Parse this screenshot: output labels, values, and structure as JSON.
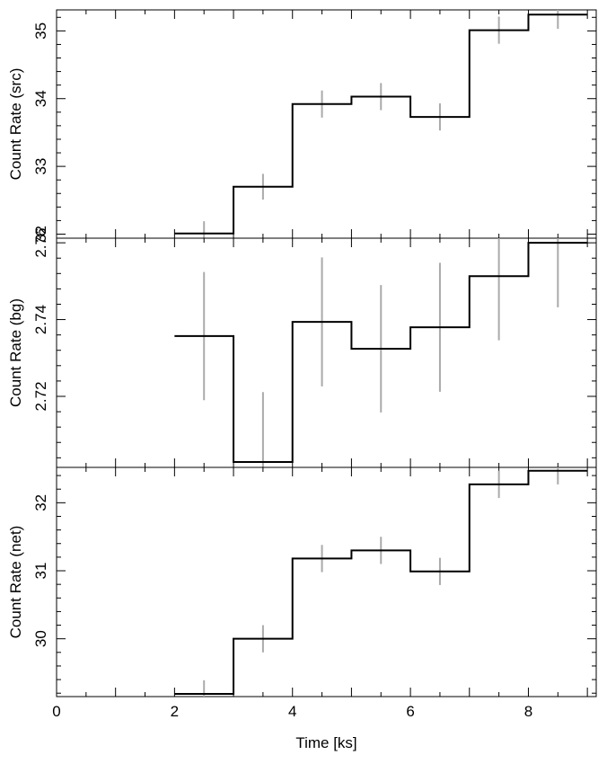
{
  "chart_data": {
    "type": "line",
    "style": "step-with-error-bars",
    "x_axis": {
      "label": "Time [ks]",
      "range": [
        0,
        9.15
      ],
      "ticks": [
        0,
        2,
        4,
        6,
        8
      ],
      "tick_labels": [
        "0",
        "2",
        "4",
        "6",
        "8"
      ]
    },
    "panels": [
      {
        "ylabel": "Count Rate (src)",
        "ylim": [
          31.94,
          35.31
        ],
        "yticks": [
          32,
          33,
          34,
          35
        ],
        "ytick_labels": [
          "32",
          "33",
          "34",
          "35"
        ],
        "bins": [
          {
            "x0": 2,
            "x1": 3,
            "xc": 2.5,
            "y": 32.01,
            "err": 0.18
          },
          {
            "x0": 3,
            "x1": 4,
            "xc": 3.5,
            "y": 32.7,
            "err": 0.19
          },
          {
            "x0": 4,
            "x1": 5,
            "xc": 4.5,
            "y": 33.92,
            "err": 0.2
          },
          {
            "x0": 5,
            "x1": 6,
            "xc": 5.5,
            "y": 34.03,
            "err": 0.2
          },
          {
            "x0": 6,
            "x1": 7,
            "xc": 6.5,
            "y": 33.73,
            "err": 0.2
          },
          {
            "x0": 7,
            "x1": 8,
            "xc": 7.5,
            "y": 35.01,
            "err": 0.2
          },
          {
            "x0": 8,
            "x1": 9,
            "xc": 8.5,
            "y": 35.24,
            "err": 0.21
          }
        ]
      },
      {
        "ylabel": "Count Rate (bg)",
        "ylim": [
          2.7015,
          2.7612
        ],
        "yticks": [
          2.72,
          2.74,
          2.76
        ],
        "ytick_labels": [
          "2.72",
          "2.74",
          "2.76"
        ],
        "bins": [
          {
            "x0": 2,
            "x1": 3,
            "xc": 2.5,
            "y": 2.7357,
            "err": 0.0167
          },
          {
            "x0": 3,
            "x1": 4,
            "xc": 3.5,
            "y": 2.7029,
            "err": 0.0182
          },
          {
            "x0": 4,
            "x1": 5,
            "xc": 4.5,
            "y": 2.7394,
            "err": 0.0168
          },
          {
            "x0": 5,
            "x1": 6,
            "xc": 5.5,
            "y": 2.7324,
            "err": 0.0166
          },
          {
            "x0": 6,
            "x1": 7,
            "xc": 6.5,
            "y": 2.738,
            "err": 0.0168
          },
          {
            "x0": 7,
            "x1": 8,
            "xc": 7.5,
            "y": 2.7513,
            "err": 0.0167
          },
          {
            "x0": 8,
            "x1": 9,
            "xc": 8.5,
            "y": 2.76,
            "err": 0.0168
          }
        ]
      },
      {
        "ylabel": "Count Rate (net)",
        "ylim": [
          29.15,
          32.52
        ],
        "yticks": [
          30,
          31,
          32
        ],
        "ytick_labels": [
          "30",
          "31",
          "32"
        ],
        "bins": [
          {
            "x0": 2,
            "x1": 3,
            "xc": 2.5,
            "y": 29.19,
            "err": 0.2
          },
          {
            "x0": 3,
            "x1": 4,
            "xc": 3.5,
            "y": 30.0,
            "err": 0.2
          },
          {
            "x0": 4,
            "x1": 5,
            "xc": 4.5,
            "y": 31.18,
            "err": 0.2
          },
          {
            "x0": 5,
            "x1": 6,
            "xc": 5.5,
            "y": 31.3,
            "err": 0.2
          },
          {
            "x0": 6,
            "x1": 7,
            "xc": 6.5,
            "y": 30.99,
            "err": 0.2
          },
          {
            "x0": 7,
            "x1": 8,
            "xc": 7.5,
            "y": 32.27,
            "err": 0.2
          },
          {
            "x0": 8,
            "x1": 9,
            "xc": 8.5,
            "y": 32.47,
            "err": 0.2
          }
        ]
      }
    ],
    "colors": {
      "step_line": "#000000",
      "error_bar": "#aaaaaa",
      "frame": "#000000",
      "background": "#ffffff"
    },
    "grid": false
  }
}
